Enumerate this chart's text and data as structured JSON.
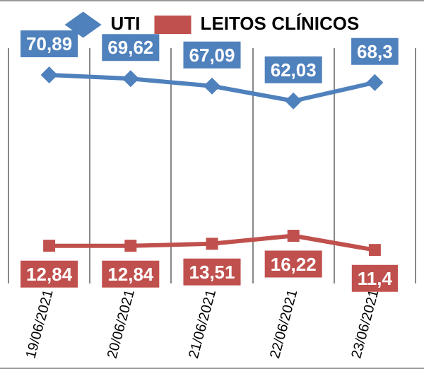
{
  "chart_data": {
    "type": "line",
    "categories": [
      "19/06/2021",
      "20/06/2021",
      "21/06/2021",
      "22/06/2021",
      "23/06/2021"
    ],
    "series": [
      {
        "name": "UTI",
        "color": "#4f81bd",
        "marker": "diamond",
        "values": [
          70.89,
          69.62,
          67.09,
          62.03,
          68.3
        ],
        "value_labels": [
          "70,89",
          "69,62",
          "67,09",
          "62,03",
          "68,3"
        ]
      },
      {
        "name": "LEITOS CLÍNICOS",
        "color": "#c0504d",
        "marker": "square",
        "values": [
          12.84,
          12.84,
          13.51,
          16.22,
          11.4
        ],
        "value_labels": [
          "12,84",
          "12,84",
          "13,51",
          "16,22",
          "11,4"
        ]
      }
    ],
    "legend": "top",
    "grid": "x",
    "tick_labels": "x"
  }
}
